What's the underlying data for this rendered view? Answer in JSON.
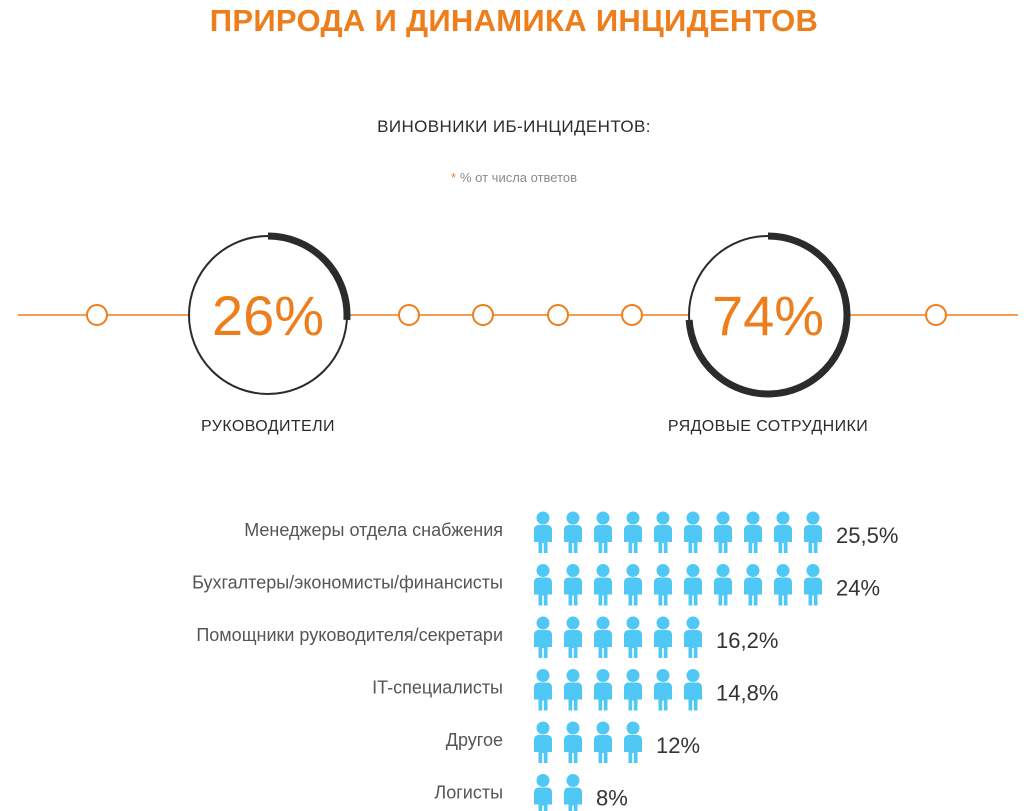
{
  "title": "ПРИРОДА И ДИНАМИКА ИНЦИДЕНТОВ",
  "subtitle": "ВИНОВНИКИ ИБ-ИНЦИДЕНТОВ:",
  "note": {
    "star": "*",
    "text": "% от числа ответов"
  },
  "colors": {
    "accent": "#EE7D1C",
    "person": "#4FC8F5",
    "ring": "#2B2B2B",
    "text": "#555555"
  },
  "chart_data": [
    {
      "type": "pie",
      "categories": [
        "РУКОВОДИТЕЛИ",
        "РЯДОВЫЕ СОТРУДНИКИ"
      ],
      "values": [
        26,
        74
      ],
      "value_labels": [
        "26%",
        "74%"
      ]
    },
    {
      "type": "bar",
      "unit_icon": "person-icon",
      "categories": [
        "Менеджеры отдела снабжения",
        "Бухгалтеры/экономисты/финансисты",
        "Помощники руководителя/секретари",
        "IT-специалисты",
        "Другое",
        "Логисты"
      ],
      "values": [
        25.5,
        24,
        16.2,
        14.8,
        12,
        8
      ],
      "value_labels": [
        "25,5%",
        "24%",
        "16,2%",
        "14,8%",
        "12%",
        "8%"
      ],
      "icon_counts": [
        10,
        10,
        6,
        6,
        4,
        2
      ]
    }
  ]
}
